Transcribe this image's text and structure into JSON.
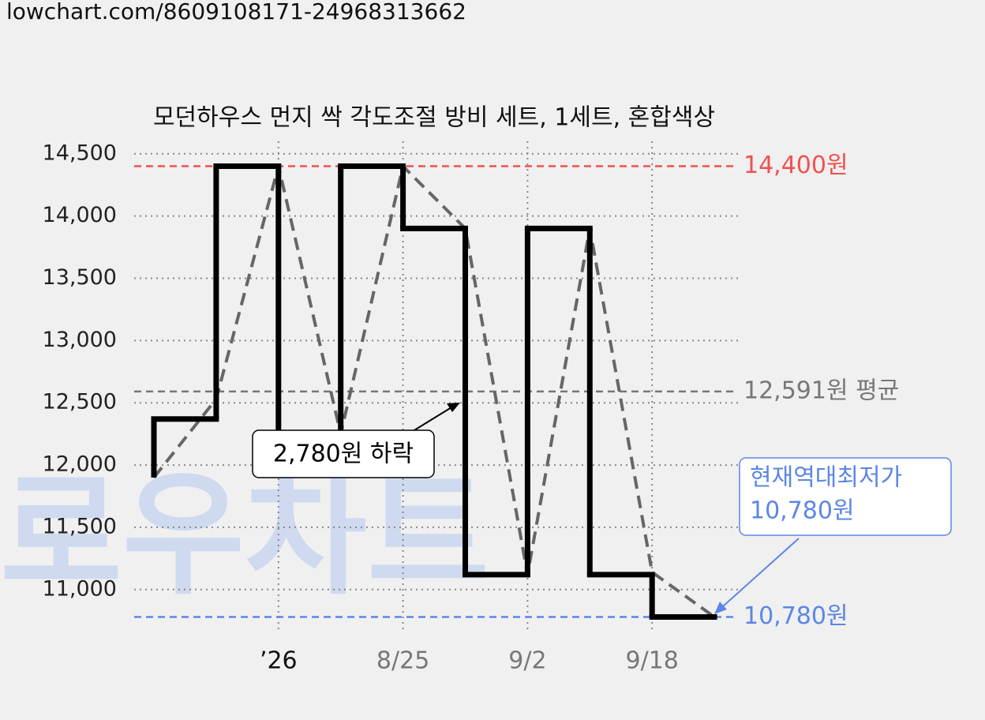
{
  "page_url": "lowchart.com/8609108171-24968313662",
  "chart_data": {
    "type": "step",
    "title": "모던하우스 먼지 싹 각도조절 방비 세트, 1세트, 혼합색상",
    "watermark": "로우차트",
    "categories": [
      null,
      null,
      "’26",
      null,
      "8/25",
      null,
      "9/2",
      null,
      "9/18",
      null
    ],
    "series": [
      {
        "color": "#000000",
        "values": [
          12370,
          14400,
          12250,
          14400,
          13900,
          11120,
          13900,
          11120,
          10780,
          10780
        ]
      },
      {
        "color": "#666666",
        "values": [
          11900,
          12530,
          14400,
          12250,
          14400,
          13900,
          11120,
          13900,
          11140,
          10780
        ]
      }
    ],
    "ylim": [
      10650,
      14600
    ],
    "yticks": [
      {
        "value": 11000,
        "label": "11,000"
      },
      {
        "value": 11500,
        "label": "11,500"
      },
      {
        "value": 12000,
        "label": "12,000"
      },
      {
        "value": 12500,
        "label": "12,500"
      },
      {
        "value": 13000,
        "label": "13,000"
      },
      {
        "value": 13500,
        "label": "13,500"
      },
      {
        "value": 14000,
        "label": "14,000"
      },
      {
        "value": 14500,
        "label": "14,500"
      }
    ],
    "grid": true,
    "hlines": [
      {
        "value": 14400,
        "label": "14,400원",
        "color": "#f05050"
      },
      {
        "value": 12591,
        "label": "12,591원 평균",
        "color": "#777777"
      },
      {
        "value": 10780,
        "label": "10,780원",
        "color": "#5b86e5"
      }
    ],
    "annotations": [
      {
        "lines": [
          "2,780원 하락"
        ],
        "color": "#000000"
      },
      {
        "lines": [
          "현재역대최저가",
          "10,780원"
        ],
        "color": "#5b86e5"
      }
    ]
  }
}
